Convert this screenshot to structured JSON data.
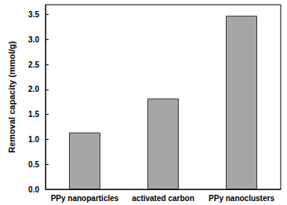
{
  "chart_data": {
    "type": "bar",
    "y_label": "Removal capacity (mmol/g)",
    "categories": [
      "PPy nanoparticles",
      "activated carbon",
      "PPy nanoclusters"
    ],
    "values": [
      1.14,
      1.82,
      3.48
    ],
    "color": "#a6a6a6",
    "ylim": [
      0,
      3.7
    ],
    "yticks": [
      {
        "value": 0,
        "label": "0.0"
      },
      0.5,
      {
        "value": 1,
        "label": "1.0"
      },
      1.5,
      {
        "value": 2,
        "label": "2.0"
      },
      2.5,
      {
        "value": 3,
        "label": "3.0"
      },
      3.5
    ],
    "grid": false
  }
}
